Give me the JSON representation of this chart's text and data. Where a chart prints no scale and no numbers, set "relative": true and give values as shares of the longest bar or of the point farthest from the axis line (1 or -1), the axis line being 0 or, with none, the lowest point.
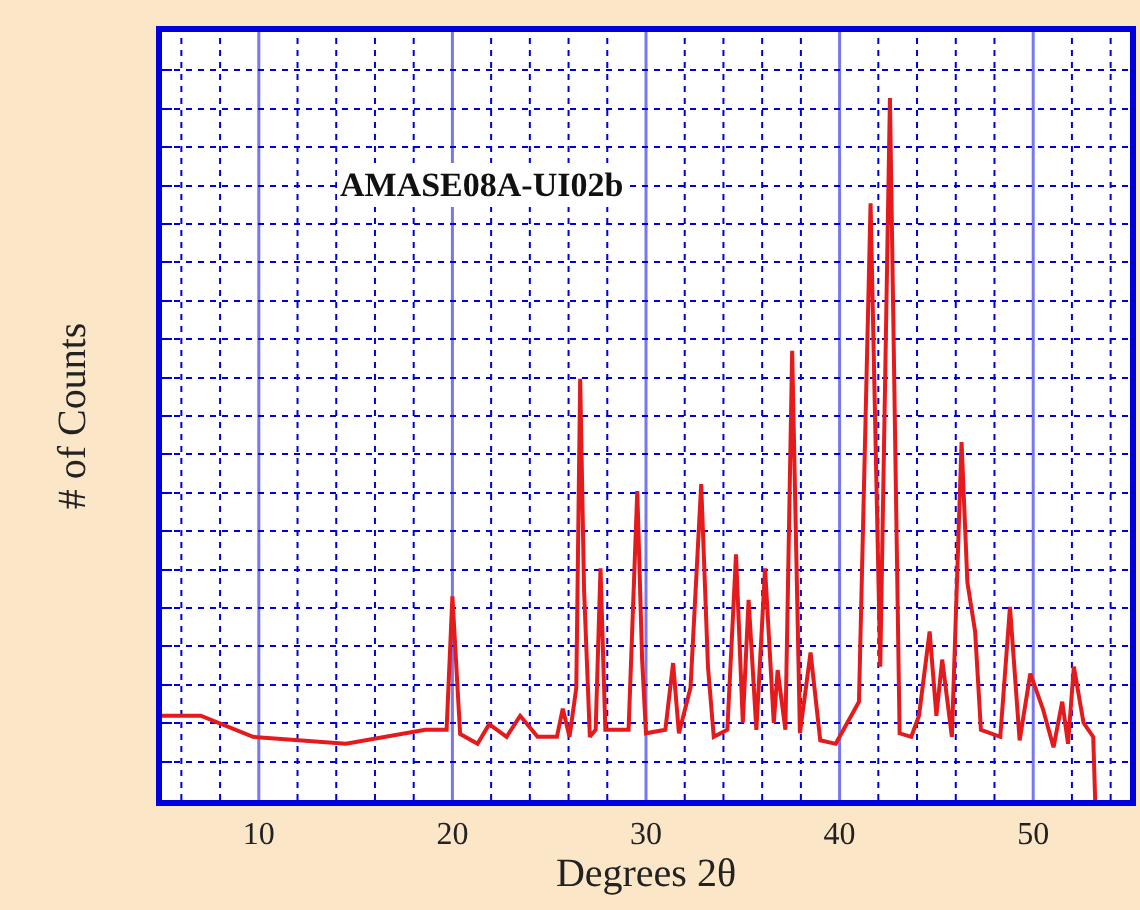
{
  "chart_data": {
    "type": "line",
    "title": "AMASE08A-UI02b",
    "xlabel": "Degrees 2θ",
    "ylabel": "# of Counts",
    "relative": true,
    "xlim": [
      5,
      55
    ],
    "xticks": [
      {
        "value": 6,
        "label": null
      },
      {
        "value": 8,
        "label": null
      },
      10,
      {
        "value": 12,
        "label": null
      },
      {
        "value": 14,
        "label": null
      },
      {
        "value": 16,
        "label": null
      },
      {
        "value": 18,
        "label": null
      },
      20,
      {
        "value": 22,
        "label": null
      },
      {
        "value": 24,
        "label": null
      },
      {
        "value": 26,
        "label": null
      },
      {
        "value": 28,
        "label": null
      },
      30,
      {
        "value": 32,
        "label": null
      },
      {
        "value": 34,
        "label": null
      },
      {
        "value": 36,
        "label": null
      },
      {
        "value": 38,
        "label": null
      },
      40,
      {
        "value": 42,
        "label": null
      },
      {
        "value": 44,
        "label": null
      },
      {
        "value": 46,
        "label": null
      },
      {
        "value": 48,
        "label": null
      },
      50,
      {
        "value": 52,
        "label": null
      },
      {
        "value": 54,
        "label": null
      }
    ],
    "grid": true,
    "marker": "none",
    "line_style": "solid",
    "tick_labels": "x",
    "series": [
      {
        "color": "#e41a1c",
        "x": [
          5.0,
          7.0,
          9.7,
          14.5,
          18.6,
          19.7,
          20.0,
          20.4,
          21.3,
          21.9,
          22.8,
          23.5,
          24.4,
          25.4,
          25.7,
          26.05,
          26.4,
          26.6,
          26.8,
          27.1,
          27.4,
          27.65,
          27.9,
          29.1,
          29.55,
          29.8,
          30.0,
          31.0,
          31.4,
          31.7,
          32.3,
          32.85,
          33.2,
          33.5,
          34.2,
          34.65,
          35.0,
          35.3,
          35.7,
          36.15,
          36.6,
          36.8,
          37.2,
          37.55,
          37.95,
          38.5,
          39.0,
          39.8,
          41.0,
          41.6,
          42.1,
          42.6,
          43.1,
          43.7,
          44.1,
          44.65,
          45.0,
          45.3,
          45.8,
          46.3,
          46.6,
          47.0,
          47.3,
          48.3,
          48.8,
          49.3,
          49.85,
          50.5,
          51.05,
          51.5,
          51.8,
          52.1,
          52.6,
          53.1,
          53.2
        ],
        "values": [
          0.12,
          0.12,
          0.09,
          0.08,
          0.1,
          0.1,
          0.29,
          0.094,
          0.08,
          0.108,
          0.09,
          0.12,
          0.09,
          0.09,
          0.13,
          0.09,
          0.16,
          0.6,
          0.3,
          0.09,
          0.1,
          0.33,
          0.1,
          0.1,
          0.44,
          0.2,
          0.095,
          0.1,
          0.195,
          0.095,
          0.16,
          0.45,
          0.19,
          0.09,
          0.1,
          0.35,
          0.11,
          0.285,
          0.1,
          0.33,
          0.11,
          0.185,
          0.1,
          0.64,
          0.095,
          0.21,
          0.085,
          0.08,
          0.14,
          0.85,
          0.19,
          1.0,
          0.095,
          0.09,
          0.12,
          0.24,
          0.12,
          0.2,
          0.09,
          0.51,
          0.31,
          0.24,
          0.1,
          0.09,
          0.275,
          0.085,
          0.18,
          0.13,
          0.075,
          0.14,
          0.08,
          0.19,
          0.11,
          0.09,
          0.0
        ]
      }
    ]
  }
}
